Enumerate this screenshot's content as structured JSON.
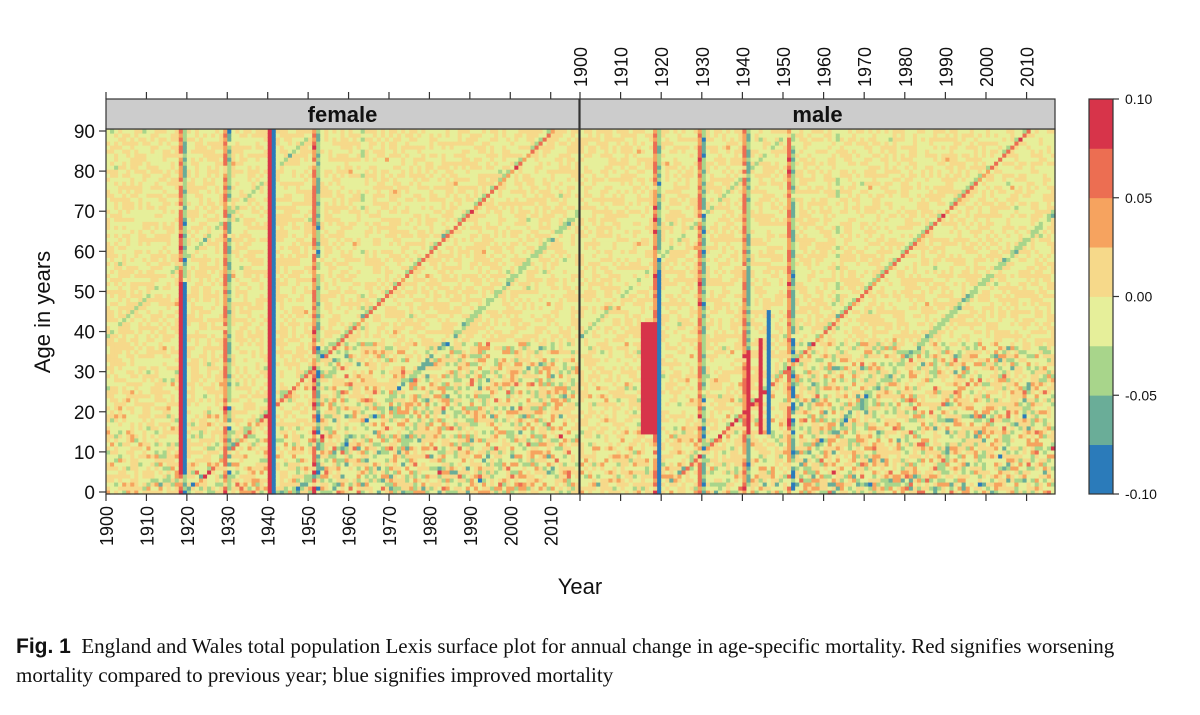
{
  "chart_data": {
    "type": "heatmap",
    "title": "",
    "xlabel": "Year",
    "ylabel": "Age in years",
    "panels": [
      {
        "name": "female",
        "label": "female"
      },
      {
        "name": "male",
        "label": "male"
      }
    ],
    "x_range": [
      1900,
      2016
    ],
    "y_range": [
      0,
      90
    ],
    "x_ticks": [
      "1900",
      "1910",
      "1920",
      "1930",
      "1940",
      "1950",
      "1960",
      "1970",
      "1980",
      "1990",
      "2000",
      "2010"
    ],
    "y_ticks": [
      "0",
      "10",
      "20",
      "30",
      "40",
      "50",
      "60",
      "70",
      "80",
      "90"
    ],
    "colorbar": {
      "ticks": [
        "0.10",
        "0.05",
        "0.00",
        "-0.05",
        "-0.10"
      ],
      "tick_values": [
        0.1,
        0.05,
        0.0,
        -0.05,
        -0.1
      ],
      "range": [
        -0.1,
        0.1
      ],
      "colors": [
        "#2b7bba",
        "#6aad98",
        "#a8d58b",
        "#e6ef9a",
        "#f6d98a",
        "#f6a35f",
        "#ec6e52",
        "#d7344a"
      ]
    },
    "features": [
      {
        "panel": "female",
        "year": 1918,
        "age_range": [
          5,
          52
        ],
        "value": 0.1
      },
      {
        "panel": "female",
        "year": 1919,
        "age_range": [
          5,
          52
        ],
        "value": -0.1
      },
      {
        "panel": "female",
        "year": 1940,
        "age_range": [
          0,
          90
        ],
        "value": 0.1
      },
      {
        "panel": "female",
        "year": 1941,
        "age_range": [
          0,
          90
        ],
        "value": -0.1
      },
      {
        "panel": "male",
        "year": 1915,
        "age_range": [
          15,
          42
        ],
        "value": 0.1
      },
      {
        "panel": "male",
        "year": 1919,
        "age_range": [
          0,
          55
        ],
        "value": -0.1
      },
      {
        "panel": "male",
        "year": 1941,
        "age_range": [
          15,
          35
        ],
        "value": 0.1
      },
      {
        "panel": "male",
        "year": 1944,
        "age_range": [
          15,
          38
        ],
        "value": 0.1
      },
      {
        "panel": "male",
        "year": 1946,
        "age_range": [
          15,
          45
        ],
        "value": -0.1
      }
    ]
  },
  "caption": {
    "label": "Fig. 1",
    "text": "England and Wales total population Lexis surface plot for annual change in age-specific mortality. Red signifies worsening mortality compared to previous year; blue signifies improved mortality"
  }
}
